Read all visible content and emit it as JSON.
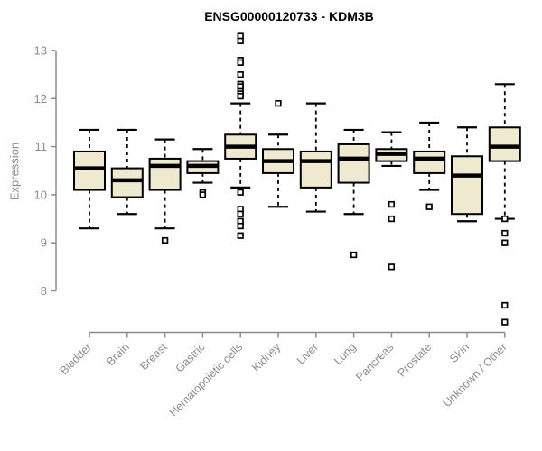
{
  "chart_data": {
    "type": "boxplot",
    "title": "ENSG00000120733 - KDM3B",
    "ylabel": "Expression",
    "xlabel": "",
    "yticks": [
      8,
      9,
      10,
      11,
      12,
      13
    ],
    "ylim": [
      7.2,
      13.45
    ],
    "grid": false,
    "legend": "none",
    "categories": [
      "Bladder",
      "Brain",
      "Breast",
      "Gastric",
      "Hematopoietic cells",
      "Kidney",
      "Liver",
      "Lung",
      "Pancreas",
      "Prostate",
      "Skin",
      "Unknown / Other"
    ],
    "series": [
      {
        "name": "Bladder",
        "whisker_low": 9.3,
        "q1": 10.1,
        "median": 10.55,
        "q3": 10.9,
        "whisker_high": 11.35,
        "outliers": []
      },
      {
        "name": "Brain",
        "whisker_low": 9.6,
        "q1": 9.95,
        "median": 10.3,
        "q3": 10.55,
        "whisker_high": 11.35,
        "outliers": []
      },
      {
        "name": "Breast",
        "whisker_low": 9.3,
        "q1": 10.1,
        "median": 10.6,
        "q3": 10.75,
        "whisker_high": 11.15,
        "outliers": [
          9.05
        ]
      },
      {
        "name": "Gastric",
        "whisker_low": 10.25,
        "q1": 10.45,
        "median": 10.6,
        "q3": 10.7,
        "whisker_high": 10.95,
        "outliers": [
          10.05,
          10.0
        ]
      },
      {
        "name": "Hematopoietic cells",
        "whisker_low": 10.15,
        "q1": 10.75,
        "median": 11.0,
        "q3": 11.25,
        "whisker_high": 11.9,
        "outliers": [
          13.3,
          13.2,
          12.8,
          12.75,
          12.5,
          12.3,
          12.25,
          12.15,
          12.1,
          12.05,
          10.05,
          9.7,
          9.6,
          9.45,
          9.35,
          9.15
        ]
      },
      {
        "name": "Kidney",
        "whisker_low": 9.75,
        "q1": 10.45,
        "median": 10.7,
        "q3": 10.95,
        "whisker_high": 11.25,
        "outliers": [
          11.9
        ]
      },
      {
        "name": "Liver",
        "whisker_low": 9.65,
        "q1": 10.15,
        "median": 10.7,
        "q3": 10.9,
        "whisker_high": 11.9,
        "outliers": []
      },
      {
        "name": "Lung",
        "whisker_low": 9.6,
        "q1": 10.25,
        "median": 10.75,
        "q3": 11.05,
        "whisker_high": 11.35,
        "outliers": [
          8.75
        ]
      },
      {
        "name": "Pancreas",
        "whisker_low": 10.6,
        "q1": 10.7,
        "median": 10.85,
        "q3": 10.95,
        "whisker_high": 11.3,
        "outliers": [
          9.8,
          9.5,
          8.5
        ]
      },
      {
        "name": "Prostate",
        "whisker_low": 10.1,
        "q1": 10.45,
        "median": 10.75,
        "q3": 10.9,
        "whisker_high": 11.5,
        "outliers": [
          9.75
        ]
      },
      {
        "name": "Skin",
        "whisker_low": 9.45,
        "q1": 9.6,
        "median": 10.4,
        "q3": 10.8,
        "whisker_high": 11.4,
        "outliers": []
      },
      {
        "name": "Unknown / Other",
        "whisker_low": 9.5,
        "q1": 10.7,
        "median": 11.0,
        "q3": 11.4,
        "whisker_high": 12.3,
        "outliers": [
          9.5,
          9.2,
          9.0,
          7.7,
          7.35
        ]
      }
    ],
    "colors": {
      "box_fill": "#efe9cf",
      "box_border": "#000000",
      "median": "#000000",
      "whisker": "#000000",
      "outlier": "#000000",
      "axis": "#8c8c8c",
      "tick_label": "#8c8c8c",
      "title": "#000000"
    }
  }
}
